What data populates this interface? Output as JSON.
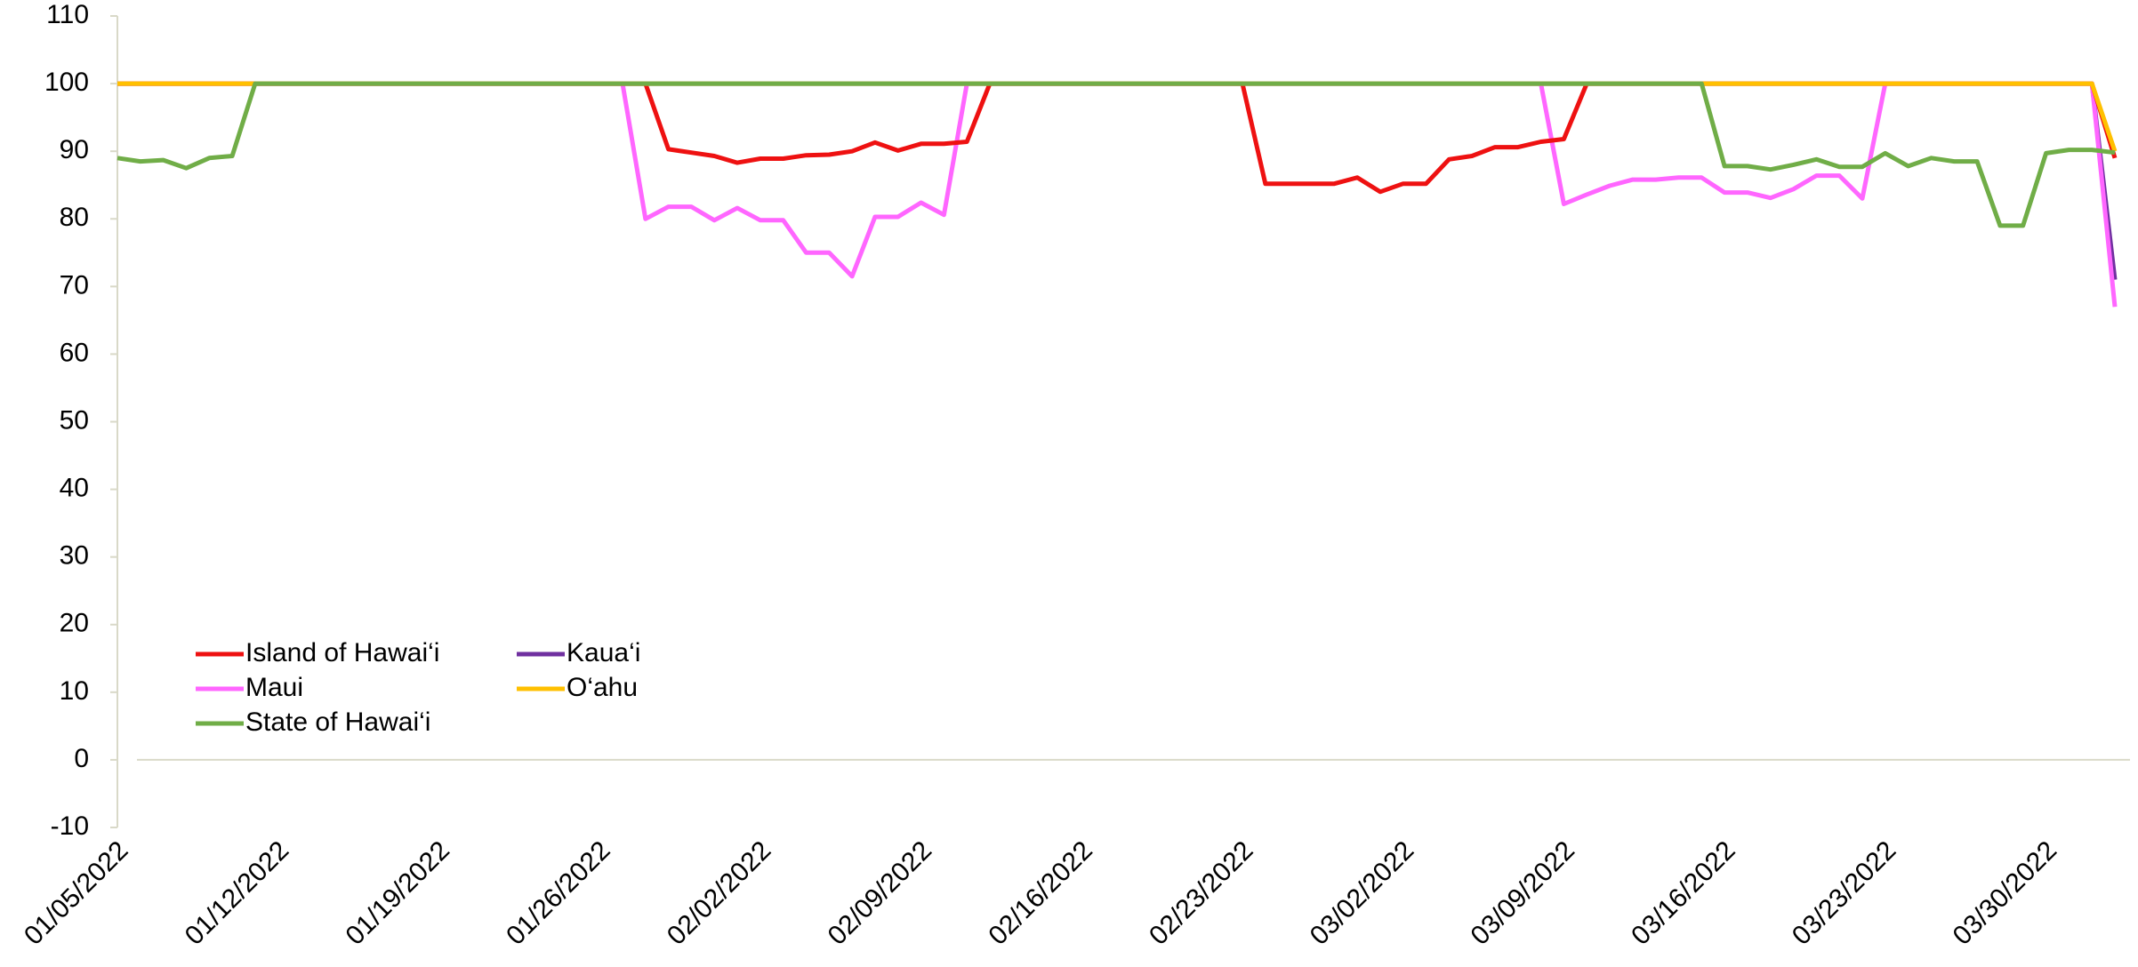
{
  "chart_data": {
    "type": "line",
    "categories": [
      "01/05/2022",
      null,
      null,
      null,
      null,
      null,
      null,
      "01/12/2022",
      null,
      null,
      null,
      null,
      null,
      null,
      "01/19/2022",
      null,
      null,
      null,
      null,
      null,
      null,
      "01/26/2022",
      null,
      null,
      null,
      null,
      null,
      null,
      "02/02/2022",
      null,
      null,
      null,
      null,
      null,
      null,
      "02/09/2022",
      null,
      null,
      null,
      null,
      null,
      null,
      "02/16/2022",
      null,
      null,
      null,
      null,
      null,
      null,
      "02/23/2022",
      null,
      null,
      null,
      null,
      null,
      null,
      "03/02/2022",
      null,
      null,
      null,
      null,
      null,
      null,
      "03/09/2022",
      null,
      null,
      null,
      null,
      null,
      null,
      "03/16/2022",
      null,
      null,
      null,
      null,
      null,
      null,
      "03/23/2022",
      null,
      null,
      null,
      null,
      null,
      null,
      "03/30/2022",
      null,
      null,
      null
    ],
    "series": [
      {
        "name": "Island of Hawai‘i",
        "color": "#ee1111",
        "values": [
          100,
          100,
          100,
          100,
          100,
          100,
          100,
          100,
          100,
          100,
          100,
          100,
          100,
          100,
          100,
          100,
          100,
          100,
          100,
          100,
          100,
          100,
          100,
          100,
          90.3,
          89.8,
          89.3,
          88.3,
          88.9,
          88.9,
          89.4,
          89.5,
          90,
          91.3,
          90.1,
          91.1,
          91.1,
          91.4,
          100,
          100,
          100,
          100,
          100,
          100,
          100,
          100,
          100,
          100,
          100,
          100,
          85.2,
          85.2,
          85.2,
          85.2,
          86.1,
          84,
          85.2,
          85.2,
          88.8,
          89.3,
          90.6,
          90.6,
          91.4,
          91.8,
          100,
          100,
          100,
          100,
          100,
          100,
          100,
          100,
          100,
          100,
          100,
          100,
          100,
          100,
          100,
          100,
          100,
          100,
          100,
          100,
          100,
          100,
          100,
          89
        ]
      },
      {
        "name": "Kaua‘i",
        "color": "#7030a0",
        "values": [
          100,
          100,
          100,
          100,
          100,
          100,
          100,
          100,
          100,
          100,
          100,
          100,
          100,
          100,
          100,
          100,
          100,
          100,
          100,
          100,
          100,
          100,
          100,
          100,
          100,
          100,
          100,
          100,
          100,
          100,
          100,
          100,
          100,
          100,
          100,
          100,
          100,
          100,
          100,
          100,
          100,
          100,
          100,
          100,
          100,
          100,
          100,
          100,
          100,
          100,
          100,
          100,
          100,
          100,
          100,
          100,
          100,
          100,
          100,
          100,
          100,
          100,
          100,
          100,
          100,
          100,
          100,
          100,
          100,
          100,
          100,
          100,
          100,
          100,
          100,
          100,
          100,
          100,
          100,
          100,
          100,
          100,
          100,
          100,
          100,
          100,
          100,
          71
        ]
      },
      {
        "name": "Maui",
        "color": "#ff66ff",
        "values": [
          100,
          100,
          100,
          100,
          100,
          100,
          100,
          100,
          100,
          100,
          100,
          100,
          100,
          100,
          100,
          100,
          100,
          100,
          100,
          100,
          100,
          100,
          100,
          80,
          81.8,
          81.8,
          79.8,
          81.6,
          79.8,
          79.8,
          75,
          75,
          71.5,
          80.3,
          80.3,
          82.4,
          80.6,
          100,
          100,
          100,
          100,
          100,
          100,
          100,
          100,
          100,
          100,
          100,
          100,
          100,
          100,
          100,
          100,
          100,
          100,
          100,
          100,
          100,
          100,
          100,
          100,
          100,
          100,
          82.2,
          83.6,
          84.9,
          85.8,
          85.8,
          86.1,
          86.1,
          83.9,
          83.9,
          83.1,
          84.4,
          86.4,
          86.4,
          83,
          100,
          100,
          100,
          100,
          100,
          100,
          100,
          100,
          100,
          100,
          67
        ]
      },
      {
        "name": "O‘ahu",
        "color": "#ffc000",
        "values": [
          100,
          100,
          100,
          100,
          100,
          100,
          100,
          100,
          100,
          100,
          100,
          100,
          100,
          100,
          100,
          100,
          100,
          100,
          100,
          100,
          100,
          100,
          100,
          100,
          100,
          100,
          100,
          100,
          100,
          100,
          100,
          100,
          100,
          100,
          100,
          100,
          100,
          100,
          100,
          100,
          100,
          100,
          100,
          100,
          100,
          100,
          100,
          100,
          100,
          100,
          100,
          100,
          100,
          100,
          100,
          100,
          100,
          100,
          100,
          100,
          100,
          100,
          100,
          100,
          100,
          100,
          100,
          100,
          100,
          100,
          100,
          100,
          100,
          100,
          100,
          100,
          100,
          100,
          100,
          100,
          100,
          100,
          100,
          100,
          100,
          100,
          100,
          90
        ]
      },
      {
        "name": "State of Hawai‘i",
        "color": "#70ad47",
        "values": [
          89,
          88.5,
          88.7,
          87.5,
          89,
          89.3,
          100,
          100,
          100,
          100,
          100,
          100,
          100,
          100,
          100,
          100,
          100,
          100,
          100,
          100,
          100,
          100,
          100,
          100,
          100,
          100,
          100,
          100,
          100,
          100,
          100,
          100,
          100,
          100,
          100,
          100,
          100,
          100,
          100,
          100,
          100,
          100,
          100,
          100,
          100,
          100,
          100,
          100,
          100,
          100,
          100,
          100,
          100,
          100,
          100,
          100,
          100,
          100,
          100,
          100,
          100,
          100,
          100,
          100,
          100,
          100,
          100,
          100,
          100,
          100,
          87.8,
          87.8,
          87.3,
          88,
          88.8,
          87.7,
          87.7,
          89.7,
          87.8,
          89,
          88.5,
          88.5,
          79,
          79,
          89.7,
          90.2,
          90.2,
          89.8
        ]
      }
    ],
    "ylim": [
      -10,
      110
    ],
    "yticks": [
      -10,
      0,
      10,
      20,
      30,
      40,
      50,
      60,
      70,
      80,
      90,
      100,
      110
    ],
    "grid": false
  }
}
